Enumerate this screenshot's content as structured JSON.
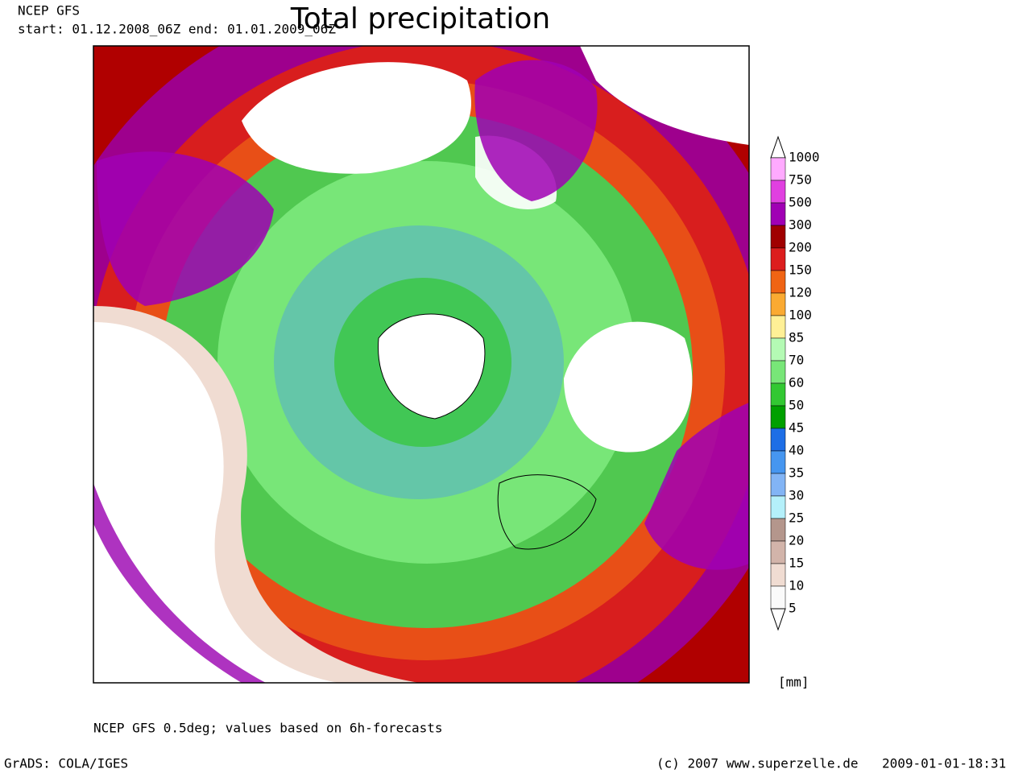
{
  "header": {
    "model": "NCEP GFS",
    "period": "start: 01.12.2008_06Z end: 01.01.2009_06Z",
    "title": "Total precipitation"
  },
  "legend": {
    "levels": [
      "1000",
      "750",
      "500",
      "300",
      "200",
      "150",
      "120",
      "100",
      "85",
      "70",
      "60",
      "50",
      "45",
      "40",
      "35",
      "30",
      "25",
      "20",
      "15",
      "10",
      "5"
    ],
    "colors": [
      "#ffaaff",
      "#e040e0",
      "#a000b4",
      "#a00000",
      "#dc1e1e",
      "#f06414",
      "#faaa32",
      "#fff096",
      "#b4fab4",
      "#78e678",
      "#32c832",
      "#00a000",
      "#1e6ee6",
      "#4696f0",
      "#82b4f5",
      "#b4f0fa",
      "#b4968c",
      "#d2b4aa",
      "#f0dcd2",
      "#fafafa"
    ],
    "unit": "[mm]"
  },
  "footer": {
    "note": "NCEP GFS 0.5deg; values based on 6h-forecasts",
    "software": "GrADS: COLA/IGES",
    "copyright": "(c) 2007 www.superzelle.de",
    "timestamp": "2009-01-01-18:31"
  }
}
